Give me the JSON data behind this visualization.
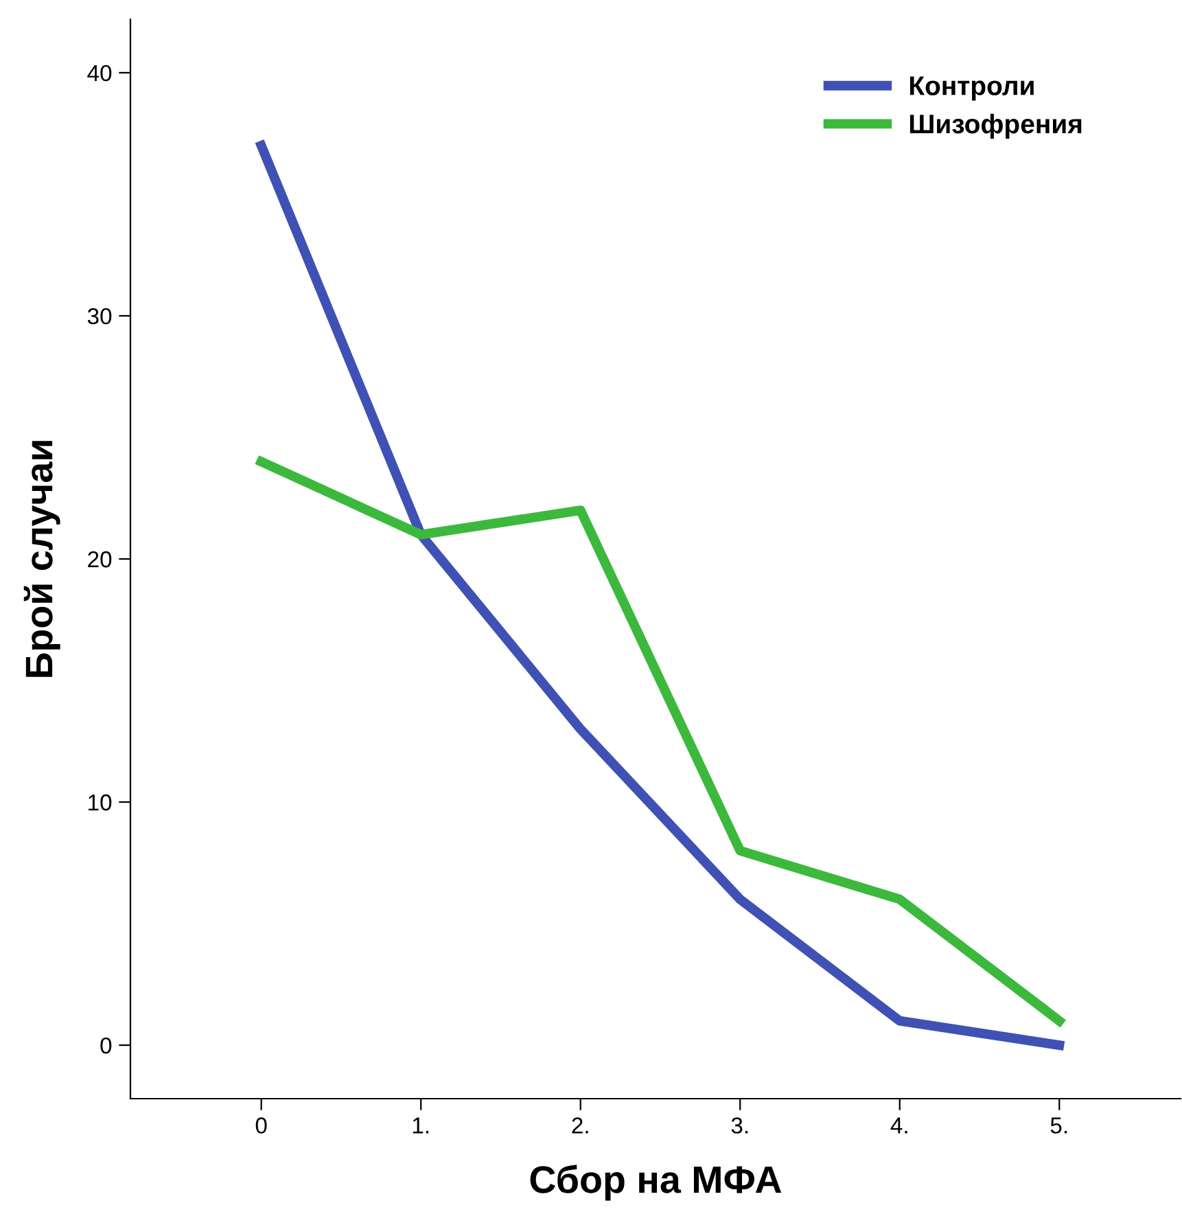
{
  "chart_data": {
    "type": "line",
    "xlabel": "Сбор на МФА",
    "ylabel": "Брой случаи",
    "categories": [
      "0",
      "1.",
      "2.",
      "3.",
      "4.",
      "5."
    ],
    "series": [
      {
        "name": "Контроли",
        "color": "#3f51b5",
        "values": [
          37,
          21,
          13,
          6,
          1,
          0
        ]
      },
      {
        "name": "Шизофрения",
        "color": "#3cb93c",
        "values": [
          24,
          21,
          22,
          8,
          6,
          1
        ]
      }
    ],
    "ylim": [
      -2.2,
      42.2
    ],
    "yticks": [
      0,
      10,
      20,
      30,
      40
    ],
    "grid": false,
    "legend": "top right",
    "marker": "none",
    "line_style": "solid"
  }
}
